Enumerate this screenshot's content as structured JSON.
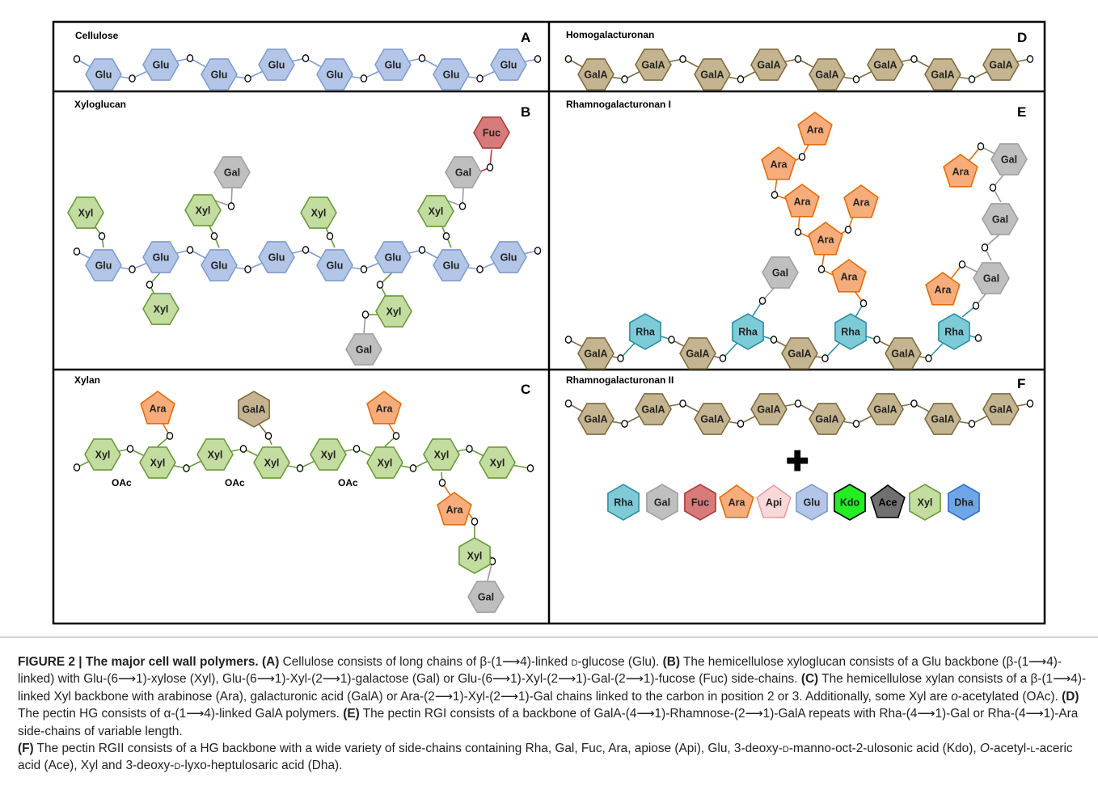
{
  "panels": [
    {
      "letter": "A",
      "title": "Cellulose"
    },
    {
      "letter": "D",
      "title": "Homogalacturonan"
    },
    {
      "letter": "B",
      "title": "Xyloglucan"
    },
    {
      "letter": "E",
      "title": "Rhamnogalacturonan I"
    },
    {
      "letter": "C",
      "title": "Xylan"
    },
    {
      "letter": "F",
      "title": "Rhamnogalacturonan II"
    }
  ],
  "linkage_label": "O",
  "acetyl_label": "OAc",
  "plus_symbol": "✚",
  "colors": {
    "Glu": "#b3c6e7",
    "GalA": "#c4b48f",
    "Xyl": "#c3dc9f",
    "Gal": "#bfbfbf",
    "Fuc": "#d77a7a",
    "Ara": "#f7ad7b",
    "Rha": "#7ecbd8",
    "Api": "#f8d9d9",
    "Kdo": "#22ee22",
    "Ace": "#707070",
    "Dha": "#6ea6e6"
  },
  "legend": [
    "Rha",
    "Gal",
    "Fuc",
    "Ara",
    "Api",
    "Glu",
    "Kdo",
    "Ace",
    "Xyl",
    "Dha"
  ],
  "caption": {
    "label": "FIGURE 2 | The major cell wall polymers.",
    "p1": "(A)",
    "t1": " Cellulose consists of long chains of β-(1⟶4)-linked ",
    "t1sc": "d",
    "t1b": "-glucose (Glu). ",
    "p2": "(B)",
    "t2": " The hemicellulose xyloglucan consists of a Glu backbone (β-(1⟶4)-linked) with Glu-(6⟶1)-xylose (Xyl), Glu-(6⟶1)-Xyl-(2⟶1)-galactose (Gal) or Glu-(6⟶1)-Xyl-(2⟶1)-Gal-(2⟶1)-fucose (Fuc) side-chains. ",
    "p3": "(C)",
    "t3": " The hemicellulose xylan consists of a β-(1⟶4)-linked Xyl backbone with arabinose (Ara), galacturonic acid (GalA) or Ara-(2⟶1)-Xyl-(2⟶1)-Gal chains linked to the carbon in position 2 or 3. Additionally, some Xyl are ",
    "t3i": "o",
    "t3b": "-acetylated (OAc). ",
    "p4": "(D)",
    "t4": " The pectin HG consists of α-(1⟶4)-linked GalA polymers. ",
    "p5": "(E)",
    "t5": " The pectin RGI consists of a backbone of GalA-(4⟶1)-Rhamnose-(2⟶1)-GalA repeats with Rha-(4⟶1)-Gal or Rha-(4⟶1)-Ara side-chains of variable length. ",
    "p6": "(F)",
    "t6a": " The pectin RGII consists of a HG backbone with a wide variety of side-chains containing Rha, Gal, Fuc, Ara, apiose (Api), Glu, 3-deoxy-",
    "t6sc1": "d",
    "t6b": "-manno-oct-2-ulosonic acid (Kdo), ",
    "t6i": "O",
    "t6c": "-acetyl-",
    "t6sc2": "l",
    "t6d": "-aceric acid (Ace), Xyl and 3-deoxy-",
    "t6sc3": "d",
    "t6e": "-lyxo-heptulosaric acid (Dha)."
  }
}
